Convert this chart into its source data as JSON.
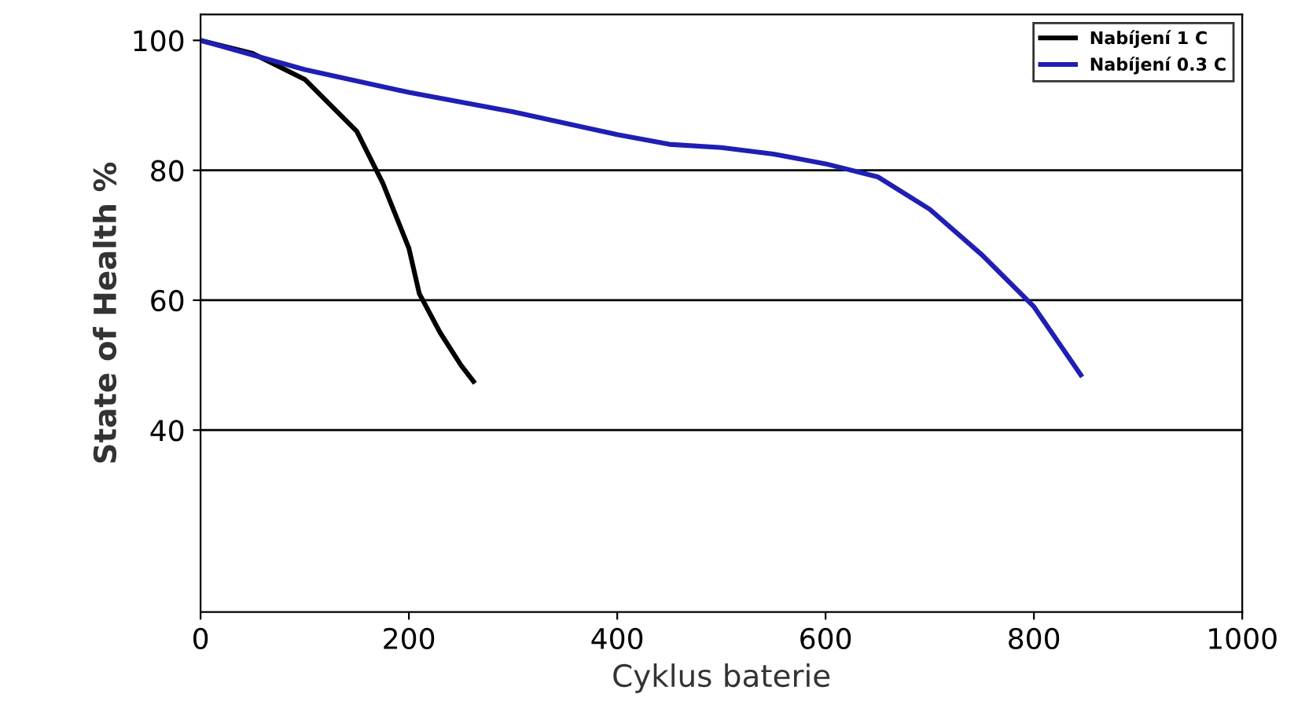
{
  "chart_data": {
    "type": "line",
    "xlabel": "Cyklus baterie",
    "ylabel": "State of Health %",
    "xlim": [
      0,
      1000
    ],
    "ylim": [
      12,
      104
    ],
    "xticks": [
      0,
      200,
      400,
      600,
      800,
      1000
    ],
    "yticks": [
      40,
      60,
      80,
      100
    ],
    "ref_lines": [
      {
        "axis": "y",
        "value": 40,
        "color": "#000000"
      },
      {
        "axis": "y",
        "value": 60,
        "color": "#000000"
      },
      {
        "axis": "y",
        "value": 80,
        "color": "#000000"
      }
    ],
    "legend": "top right",
    "grid": false,
    "marker": "none",
    "line_style": "solid",
    "series": [
      {
        "name": "Nabíjení 1 C",
        "color": "#000000",
        "x": [
          0,
          50,
          100,
          150,
          175,
          200,
          210,
          230,
          250,
          262
        ],
        "values": [
          100,
          98,
          94,
          86,
          78,
          68,
          61,
          55,
          50,
          47.5
        ]
      },
      {
        "name": "Nabíjení 0.3 C",
        "color": "#1f1fb4",
        "x": [
          0,
          100,
          200,
          300,
          400,
          450,
          500,
          550,
          600,
          650,
          700,
          750,
          800,
          830,
          845
        ],
        "values": [
          100,
          95.5,
          92,
          89,
          85.5,
          84,
          83.5,
          82.5,
          81,
          79,
          74,
          67,
          59,
          52,
          48.5
        ]
      }
    ]
  }
}
